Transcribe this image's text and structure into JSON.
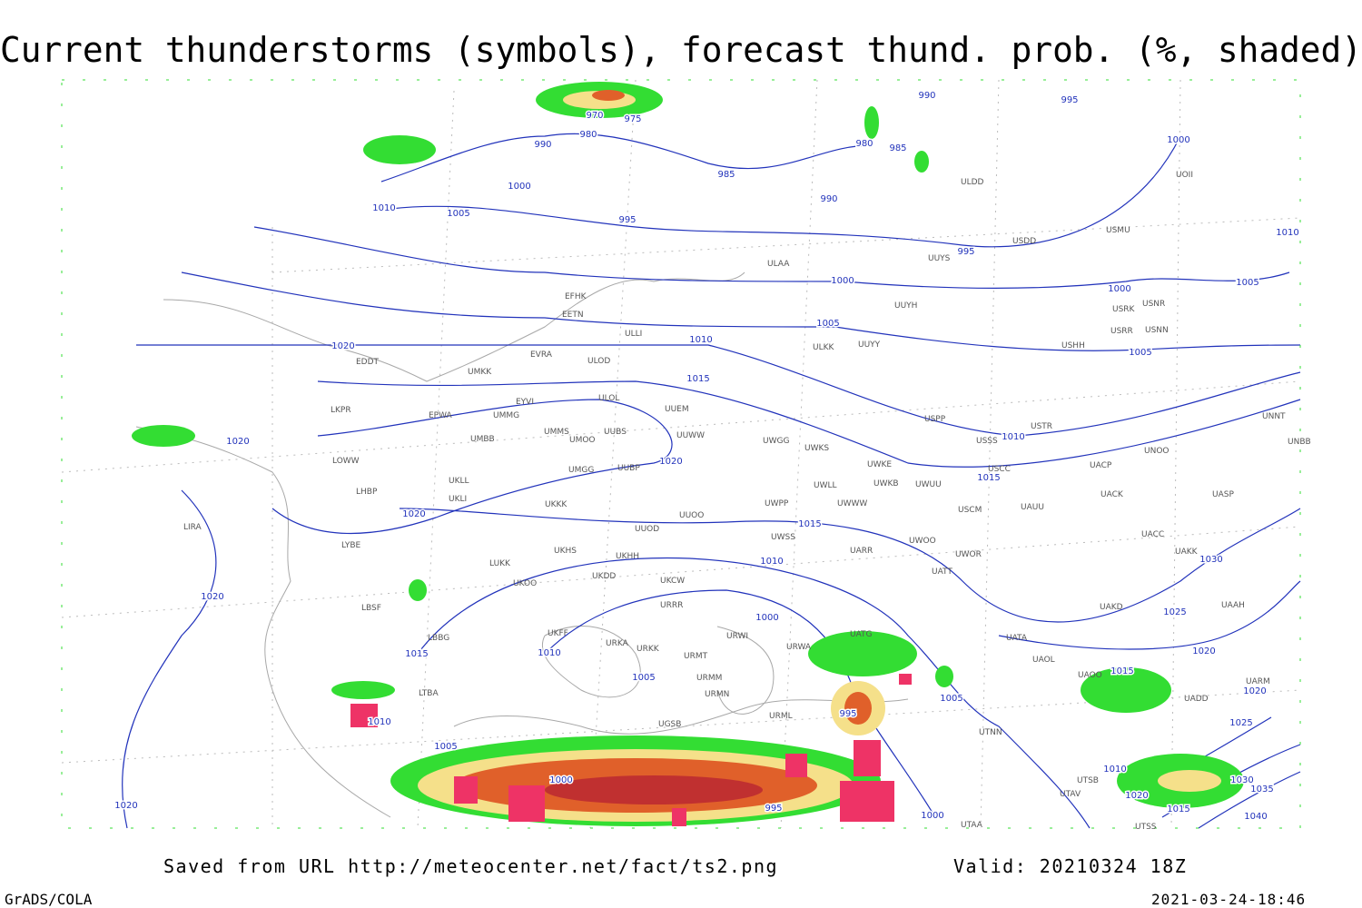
{
  "header": {
    "title": "Current thunderstorms (symbols), forecast thund. prob. (%, shaded)"
  },
  "map": {
    "isobar_labels": [
      "970",
      "975",
      "980",
      "990",
      "985",
      "1000",
      "1010",
      "1005",
      "995",
      "990",
      "980",
      "985",
      "995",
      "990",
      "995",
      "1000",
      "1010",
      "1005",
      "1000",
      "1000",
      "1005",
      "1005",
      "1010",
      "1015",
      "1020",
      "1020",
      "1020",
      "1010",
      "1015",
      "1020",
      "1015",
      "1010",
      "1030",
      "1020",
      "1025",
      "1020",
      "1015",
      "1010",
      "1000",
      "1005",
      "1015",
      "1005",
      "995",
      "1010",
      "1005",
      "1000",
      "995",
      "1000",
      "1020",
      "1010",
      "1020",
      "1015",
      "1020",
      "1025",
      "1030",
      "1035",
      "1040"
    ],
    "stations": [
      "EDDT",
      "LKPR",
      "EPWA",
      "UMMG",
      "EYVI",
      "UMBB",
      "LOWW",
      "LHBP",
      "UKLL",
      "UKLI",
      "LIRA",
      "LYBE",
      "LBSF",
      "UKKK",
      "UMMS",
      "UMOO",
      "UUBS",
      "UMGG",
      "UUBP",
      "ULOL",
      "UUEM",
      "UUWW",
      "ULOD",
      "EVRA",
      "UMKK",
      "EFHK",
      "EETN",
      "ULLI",
      "ULAA",
      "ULKK",
      "UUYY",
      "UUYH",
      "UUYS",
      "ULDD",
      "USDD",
      "USMU",
      "UOII",
      "USRK",
      "USNR",
      "USRR",
      "USNN",
      "USHH",
      "UNNT",
      "UNBB",
      "USTR",
      "USSS",
      "USCC",
      "UNOO",
      "UACP",
      "USPP",
      "UWGG",
      "UWKS",
      "UWKE",
      "UWKB",
      "UWUU",
      "UWLL",
      "UWWW",
      "UWPP",
      "USCM",
      "UAUU",
      "UACK",
      "UASP",
      "UACC",
      "UAKK",
      "UWOO",
      "UWOR",
      "UATT",
      "UARR",
      "UWSS",
      "UUOO",
      "UUOD",
      "UKHH",
      "UKDD",
      "UKHS",
      "LUKK",
      "UKOO",
      "UKCW",
      "URRR",
      "UAKD",
      "UAAH",
      "UATA",
      "UAOL",
      "UAOO",
      "UADD",
      "UARM",
      "URWI",
      "URWA",
      "UATG",
      "UKFF",
      "URKA",
      "URKK",
      "URMT",
      "URMM",
      "URMN",
      "UGSB",
      "URML",
      "UTNN",
      "UTSB",
      "UTAV",
      "UTSS",
      "UTAA",
      "LBBG",
      "LTBA"
    ]
  },
  "footer": {
    "source": "Saved from URL http://meteocenter.net/fact/ts2.png",
    "valid": "Valid: 20210324 18Z",
    "software": "GrADS/COLA",
    "timestamp": "2021-03-24-18:46"
  }
}
